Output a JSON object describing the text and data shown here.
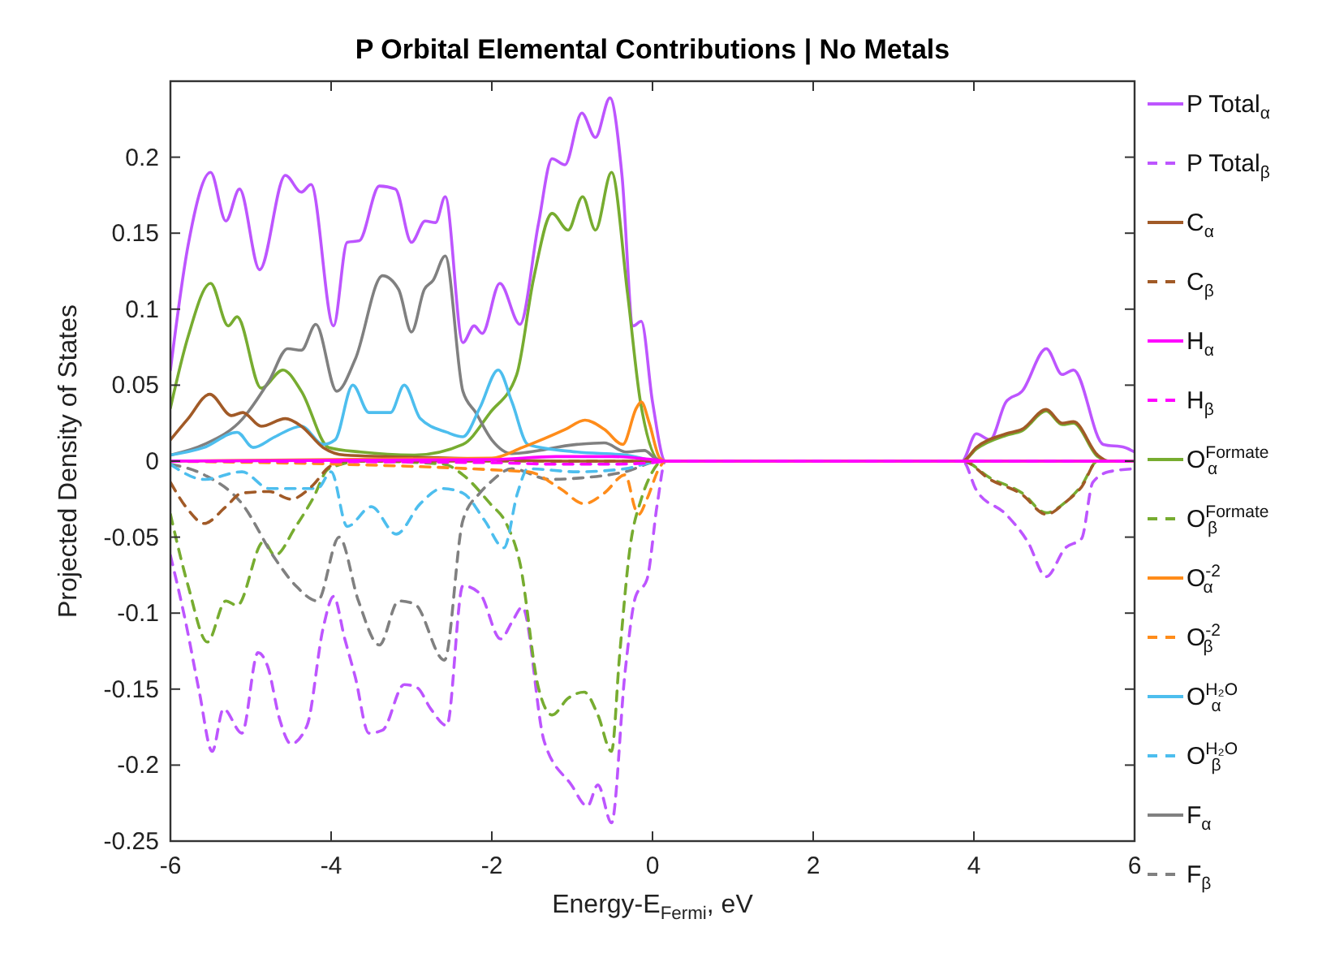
{
  "chart_data": {
    "type": "line",
    "title": "P Orbital Elemental Contributions | No Metals",
    "xlabel": "Energy-E$_{Fermi}$, eV",
    "ylabel": "Projected Density of States",
    "xlim": [
      -6,
      6
    ],
    "xticks": [
      -6,
      -4,
      -2,
      0,
      2,
      4,
      6
    ],
    "ylim": [
      -0.25,
      0.25
    ],
    "yticks": [
      -0.25,
      -0.2,
      -0.15,
      -0.1,
      -0.05,
      0,
      0.05,
      0.1,
      0.15,
      0.2
    ],
    "grid": false,
    "legend": "right",
    "series": [
      {
        "name": "P Total$_{α}$",
        "color": "#bd55ff",
        "line_style": "solid",
        "x": [
          -6,
          -5.78,
          -5.5,
          -5.31,
          -5.14,
          -4.89,
          -4.57,
          -4.37,
          -4.25,
          -3.97,
          -3.8,
          -3.65,
          -3.4,
          -3.2,
          -3.0,
          -2.83,
          -2.7,
          -2.58,
          -2.36,
          -2.22,
          -2.12,
          -1.9,
          -1.65,
          -1.42,
          -1.25,
          -1.09,
          -0.88,
          -0.71,
          -0.53,
          -0.38,
          -0.24,
          -0.14,
          0,
          0.16,
          3.85,
          4.03,
          4.2,
          4.4,
          4.6,
          4.9,
          5.1,
          5.24,
          5.61,
          5.88,
          6
        ],
        "values": [
          0.06,
          0.142,
          0.19,
          0.158,
          0.179,
          0.126,
          0.188,
          0.177,
          0.182,
          0.089,
          0.144,
          0.145,
          0.181,
          0.179,
          0.144,
          0.158,
          0.157,
          0.174,
          0.078,
          0.089,
          0.084,
          0.117,
          0.09,
          0.156,
          0.199,
          0.195,
          0.229,
          0.213,
          0.239,
          0.188,
          0.089,
          0.092,
          0.039,
          0,
          0,
          0.018,
          0.014,
          0.039,
          0.046,
          0.074,
          0.057,
          0.06,
          0.011,
          0.009,
          0.006
        ]
      },
      {
        "name": "P Total$_{β}$",
        "color": "#bd55ff",
        "line_style": "dashed",
        "x": [
          -6,
          -5.81,
          -5.64,
          -5.48,
          -5.34,
          -5.11,
          -4.91,
          -4.79,
          -4.64,
          -4.5,
          -4.3,
          -4.1,
          -3.97,
          -3.83,
          -3.7,
          -3.53,
          -3.36,
          -3.09,
          -2.93,
          -2.76,
          -2.56,
          -2.36,
          -2.15,
          -1.89,
          -1.75,
          -1.62,
          -1.35,
          -1.01,
          -0.81,
          -0.68,
          -0.51,
          -0.34,
          -0.21,
          -0.07,
          0.06,
          0.16,
          3.86,
          4.03,
          4.4,
          4.67,
          4.9,
          5.14,
          5.34,
          5.48,
          5.68,
          6
        ],
        "values": [
          -0.062,
          -0.106,
          -0.152,
          -0.191,
          -0.163,
          -0.179,
          -0.126,
          -0.135,
          -0.17,
          -0.186,
          -0.174,
          -0.11,
          -0.089,
          -0.117,
          -0.142,
          -0.179,
          -0.177,
          -0.147,
          -0.149,
          -0.163,
          -0.174,
          -0.082,
          -0.087,
          -0.117,
          -0.106,
          -0.096,
          -0.184,
          -0.213,
          -0.227,
          -0.213,
          -0.238,
          -0.138,
          -0.089,
          -0.078,
          -0.028,
          0,
          0,
          -0.019,
          -0.035,
          -0.053,
          -0.076,
          -0.057,
          -0.051,
          -0.014,
          -0.007,
          -0.005
        ]
      },
      {
        "name": "C$_{α}$",
        "color": "#a15a27",
        "line_style": "solid",
        "x": [
          -6,
          -5.78,
          -5.51,
          -5.24,
          -5.1,
          -4.87,
          -4.57,
          -4.37,
          -4.1,
          -3.83,
          -2.5,
          -1.0,
          3.86,
          4.03,
          4.4,
          4.6,
          4.9,
          5.1,
          5.24,
          5.54,
          5.68,
          6
        ],
        "values": [
          0.014,
          0.028,
          0.044,
          0.03,
          0.032,
          0.023,
          0.028,
          0.023,
          0.009,
          0.004,
          0.002,
          0,
          0,
          0.009,
          0.018,
          0.021,
          0.034,
          0.025,
          0.026,
          0.004,
          0,
          0
        ]
      },
      {
        "name": "C$_{β}$",
        "color": "#a15a27",
        "line_style": "dashed",
        "x": [
          -6,
          -5.78,
          -5.58,
          -5.31,
          -5.11,
          -4.77,
          -4.5,
          -4.23,
          -4.03,
          -3.83,
          3.86,
          4.2,
          4.6,
          4.9,
          5.14,
          5.34,
          5.54,
          6
        ],
        "values": [
          -0.014,
          -0.032,
          -0.041,
          -0.03,
          -0.021,
          -0.02,
          -0.025,
          -0.016,
          -0.004,
          0,
          0,
          -0.012,
          -0.022,
          -0.035,
          -0.027,
          -0.017,
          0,
          0
        ]
      },
      {
        "name": "H$_{α}$",
        "color": "#ff00ff",
        "line_style": "solid",
        "x": [
          -6,
          -2,
          -1.2,
          -0.5,
          0,
          0.2,
          6
        ],
        "values": [
          0,
          0.001,
          0.003,
          0.003,
          0.001,
          0,
          0
        ]
      },
      {
        "name": "H$_{β}$",
        "color": "#ff00ff",
        "line_style": "dashed",
        "x": [
          -6,
          -2,
          -1.2,
          -0.5,
          0,
          0.2,
          6
        ],
        "values": [
          0,
          -0.001,
          -0.002,
          -0.002,
          -0.001,
          0,
          0
        ]
      },
      {
        "name": "O$^{Formate}$$_{α}$",
        "color": "#77ac30",
        "line_style": "solid",
        "x": [
          -6,
          -5.78,
          -5.5,
          -5.28,
          -5.17,
          -4.87,
          -4.6,
          -4.37,
          -4.03,
          -3.63,
          -2.96,
          -2.36,
          -2.02,
          -1.69,
          -1.48,
          -1.25,
          -1.05,
          -0.87,
          -0.71,
          -0.51,
          -0.31,
          -0.15,
          0.1,
          3.86,
          4.03,
          4.4,
          4.6,
          4.9,
          5.1,
          5.24,
          5.54,
          5.68,
          6
        ],
        "values": [
          0.035,
          0.082,
          0.117,
          0.089,
          0.095,
          0.048,
          0.06,
          0.046,
          0.009,
          0.006,
          0.004,
          0.011,
          0.032,
          0.057,
          0.12,
          0.163,
          0.152,
          0.174,
          0.152,
          0.19,
          0.11,
          0.039,
          0,
          0,
          0.008,
          0.017,
          0.02,
          0.033,
          0.024,
          0.025,
          0.003,
          0,
          0
        ]
      },
      {
        "name": "O$^{Formate}$$_{β}$",
        "color": "#77ac30",
        "line_style": "dashed",
        "x": [
          -6,
          -5.78,
          -5.54,
          -5.31,
          -5.17,
          -4.84,
          -4.7,
          -4.44,
          -4.23,
          -4.03,
          -3.6,
          -2.6,
          -2.36,
          -2.02,
          -1.82,
          -1.65,
          -1.42,
          -1.25,
          -1.05,
          -0.85,
          -0.68,
          -0.51,
          -0.41,
          -0.28,
          -0.14,
          -0.04,
          0.13,
          3.86,
          4.2,
          4.6,
          4.9,
          5.14,
          5.34,
          5.54,
          6
        ],
        "values": [
          -0.035,
          -0.082,
          -0.119,
          -0.092,
          -0.095,
          -0.053,
          -0.062,
          -0.043,
          -0.025,
          -0.005,
          0,
          -0.002,
          -0.009,
          -0.028,
          -0.041,
          -0.067,
          -0.149,
          -0.167,
          -0.156,
          -0.152,
          -0.167,
          -0.191,
          -0.128,
          -0.057,
          -0.025,
          -0.011,
          0,
          0,
          -0.011,
          -0.021,
          -0.034,
          -0.027,
          -0.016,
          0,
          0
        ]
      },
      {
        "name": "O$^{-2}$$_{α}$",
        "color": "#ff8c1a",
        "line_style": "solid",
        "x": [
          -6,
          -2,
          -1.62,
          -1.08,
          -0.84,
          -0.6,
          -0.37,
          -0.2,
          -0.14,
          -0.04,
          0.09,
          0.16,
          6
        ],
        "values": [
          0,
          0.002,
          0.009,
          0.021,
          0.027,
          0.021,
          0.011,
          0.035,
          0.039,
          0.025,
          0.002,
          0,
          0
        ]
      },
      {
        "name": "O$^{-2}$$_{β}$",
        "color": "#ff8c1a",
        "line_style": "dashed",
        "x": [
          -6,
          -1.55,
          -1.15,
          -0.85,
          -0.6,
          -0.34,
          -0.21,
          -0.17,
          -0.07,
          0.09,
          0.16,
          6
        ],
        "values": [
          0,
          -0.007,
          -0.018,
          -0.028,
          -0.021,
          -0.009,
          -0.032,
          -0.035,
          -0.025,
          -0.004,
          0,
          0
        ]
      },
      {
        "name": "O$^{H₂O}$$_{α}$",
        "color": "#4dbeee",
        "line_style": "solid",
        "x": [
          -6,
          -5.58,
          -5.17,
          -4.97,
          -4.7,
          -4.37,
          -4.1,
          -3.95,
          -3.73,
          -3.53,
          -3.26,
          -3.09,
          -2.89,
          -2.56,
          -2.36,
          -2.15,
          -1.92,
          -1.75,
          -1.55,
          -0.94,
          -0.33,
          0.1,
          6
        ],
        "values": [
          0.004,
          0.009,
          0.019,
          0.009,
          0.016,
          0.023,
          0.011,
          0.014,
          0.05,
          0.032,
          0.032,
          0.05,
          0.028,
          0.019,
          0.016,
          0.035,
          0.06,
          0.039,
          0.011,
          0.006,
          0.004,
          0,
          0
        ]
      },
      {
        "name": "O$^{H₂O}$$_{β}$",
        "color": "#4dbeee",
        "line_style": "dashed",
        "x": [
          -6,
          -5.58,
          -5.11,
          -4.77,
          -4.44,
          -4.17,
          -4.0,
          -3.8,
          -3.5,
          -3.19,
          -2.89,
          -2.62,
          -2.36,
          -2.09,
          -1.85,
          -1.68,
          -1.55,
          -0.94,
          -0.34,
          0.1,
          6
        ],
        "values": [
          -0.002,
          -0.012,
          -0.007,
          -0.018,
          -0.018,
          -0.018,
          -0.007,
          -0.043,
          -0.03,
          -0.048,
          -0.028,
          -0.018,
          -0.021,
          -0.039,
          -0.057,
          -0.021,
          -0.005,
          -0.007,
          -0.005,
          0,
          0
        ]
      },
      {
        "name": "F$_{α}$",
        "color": "#808080",
        "line_style": "solid",
        "x": [
          -6,
          -5.58,
          -5.1,
          -4.77,
          -4.54,
          -4.37,
          -4.19,
          -3.93,
          -3.7,
          -3.36,
          -3.16,
          -3.0,
          -2.84,
          -2.73,
          -2.58,
          -2.36,
          -2.2,
          -2.0,
          -1.75,
          -0.94,
          -0.6,
          -0.33,
          -0.1,
          0.03,
          0.16,
          6
        ],
        "values": [
          0.004,
          0.011,
          0.028,
          0.053,
          0.074,
          0.073,
          0.09,
          0.046,
          0.067,
          0.122,
          0.113,
          0.085,
          0.113,
          0.119,
          0.135,
          0.046,
          0.032,
          0.014,
          0.005,
          0.011,
          0.012,
          0.006,
          0.007,
          0.002,
          0,
          0
        ]
      },
      {
        "name": "F$_{β}$",
        "color": "#808080",
        "line_style": "dashed",
        "x": [
          -6,
          -5.58,
          -5.11,
          -4.7,
          -4.44,
          -4.17,
          -3.9,
          -3.66,
          -3.4,
          -3.16,
          -2.96,
          -2.59,
          -2.36,
          -2.15,
          -2.02,
          -1.75,
          -1.28,
          -0.88,
          -0.34,
          0.1,
          6
        ],
        "values": [
          -0.002,
          -0.009,
          -0.028,
          -0.064,
          -0.082,
          -0.092,
          -0.05,
          -0.092,
          -0.121,
          -0.092,
          -0.094,
          -0.131,
          -0.039,
          -0.021,
          -0.014,
          -0.005,
          -0.012,
          -0.011,
          -0.007,
          0,
          0
        ]
      }
    ]
  }
}
